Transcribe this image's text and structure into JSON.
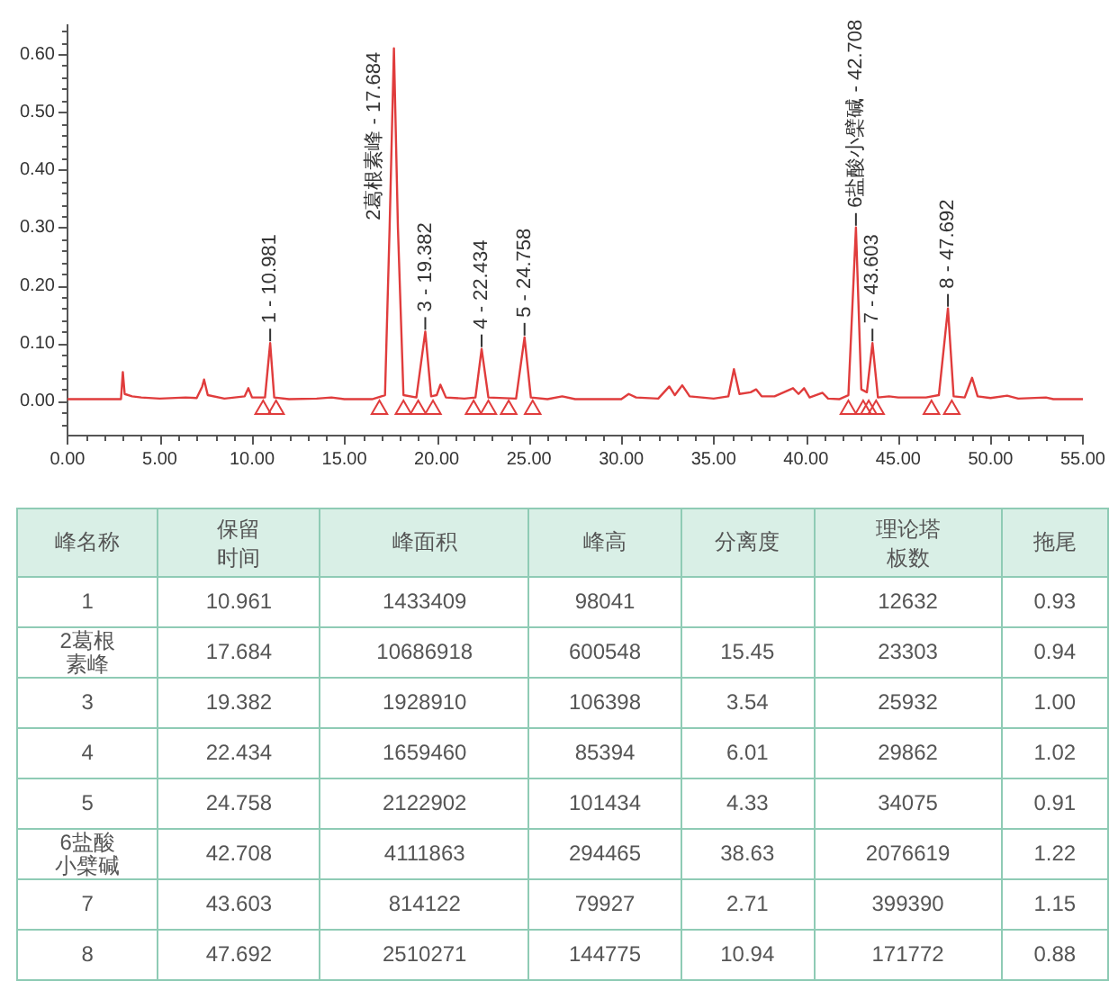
{
  "chart_data": [
    {
      "type": "line",
      "xlim": [
        0,
        55
      ],
      "ylim": [
        -0.06,
        0.65
      ],
      "xticks": [
        {
          "value": 0,
          "label": "0.00"
        },
        {
          "value": 1,
          "label": null
        },
        {
          "value": 2,
          "label": null
        },
        {
          "value": 3,
          "label": null
        },
        {
          "value": 4,
          "label": null
        },
        {
          "value": 5,
          "label": "5.00"
        },
        {
          "value": 6,
          "label": null
        },
        {
          "value": 7,
          "label": null
        },
        {
          "value": 8,
          "label": null
        },
        {
          "value": 9,
          "label": null
        },
        {
          "value": 10,
          "label": "10.00"
        },
        {
          "value": 11,
          "label": null
        },
        {
          "value": 12,
          "label": null
        },
        {
          "value": 13,
          "label": null
        },
        {
          "value": 14,
          "label": null
        },
        {
          "value": 15,
          "label": "15.00"
        },
        {
          "value": 16,
          "label": null
        },
        {
          "value": 17,
          "label": null
        },
        {
          "value": 18,
          "label": null
        },
        {
          "value": 19,
          "label": null
        },
        {
          "value": 20,
          "label": "20.00"
        },
        {
          "value": 21,
          "label": null
        },
        {
          "value": 22,
          "label": null
        },
        {
          "value": 23,
          "label": null
        },
        {
          "value": 24,
          "label": null
        },
        {
          "value": 25,
          "label": "25.00"
        },
        {
          "value": 26,
          "label": null
        },
        {
          "value": 27,
          "label": null
        },
        {
          "value": 28,
          "label": null
        },
        {
          "value": 29,
          "label": null
        },
        {
          "value": 30,
          "label": "30.00"
        },
        {
          "value": 31,
          "label": null
        },
        {
          "value": 32,
          "label": null
        },
        {
          "value": 33,
          "label": null
        },
        {
          "value": 34,
          "label": null
        },
        {
          "value": 35,
          "label": "35.00"
        },
        {
          "value": 36,
          "label": null
        },
        {
          "value": 37,
          "label": null
        },
        {
          "value": 38,
          "label": null
        },
        {
          "value": 39,
          "label": null
        },
        {
          "value": 40,
          "label": "40.00"
        },
        {
          "value": 41,
          "label": null
        },
        {
          "value": 42,
          "label": null
        },
        {
          "value": 43,
          "label": null
        },
        {
          "value": 44,
          "label": null
        },
        {
          "value": 45,
          "label": "45.00"
        },
        {
          "value": 46,
          "label": null
        },
        {
          "value": 47,
          "label": null
        },
        {
          "value": 48,
          "label": null
        },
        {
          "value": 49,
          "label": null
        },
        {
          "value": 50,
          "label": "50.00"
        },
        {
          "value": 51,
          "label": null
        },
        {
          "value": 52,
          "label": null
        },
        {
          "value": 53,
          "label": null
        },
        {
          "value": 54,
          "label": null
        },
        {
          "value": 55,
          "label": "55.00"
        }
      ],
      "yticks": [
        {
          "value": -0.04,
          "label": null
        },
        {
          "value": -0.02,
          "label": null
        },
        {
          "value": 0,
          "label": "0.00"
        },
        {
          "value": 0.02,
          "label": null
        },
        {
          "value": 0.04,
          "label": null
        },
        {
          "value": 0.06,
          "label": null
        },
        {
          "value": 0.08,
          "label": null
        },
        {
          "value": 0.1,
          "label": "0.10"
        },
        {
          "value": 0.12,
          "label": null
        },
        {
          "value": 0.14,
          "label": null
        },
        {
          "value": 0.16,
          "label": null
        },
        {
          "value": 0.18,
          "label": null
        },
        {
          "value": 0.2,
          "label": "0.20"
        },
        {
          "value": 0.22,
          "label": null
        },
        {
          "value": 0.24,
          "label": null
        },
        {
          "value": 0.26,
          "label": null
        },
        {
          "value": 0.28,
          "label": null
        },
        {
          "value": 0.3,
          "label": "0.30"
        },
        {
          "value": 0.32,
          "label": null
        },
        {
          "value": 0.34,
          "label": null
        },
        {
          "value": 0.36,
          "label": null
        },
        {
          "value": 0.38,
          "label": null
        },
        {
          "value": 0.4,
          "label": "0.40"
        },
        {
          "value": 0.42,
          "label": null
        },
        {
          "value": 0.44,
          "label": null
        },
        {
          "value": 0.46,
          "label": null
        },
        {
          "value": 0.48,
          "label": null
        },
        {
          "value": 0.5,
          "label": "0.50"
        },
        {
          "value": 0.52,
          "label": null
        },
        {
          "value": 0.54,
          "label": null
        },
        {
          "value": 0.56,
          "label": null
        },
        {
          "value": 0.58,
          "label": null
        },
        {
          "value": 0.6,
          "label": "0.60"
        },
        {
          "value": 0.62,
          "label": null
        },
        {
          "value": 0.64,
          "label": null
        }
      ],
      "series": [
        {
          "type": "line",
          "color": "#e03c3c",
          "marker": "none",
          "x": [
            0,
            2.9,
            3.0,
            3.1,
            3.5,
            4,
            5,
            6.4,
            7.0,
            7.3,
            7.4,
            7.6,
            8.5,
            9.6,
            9.8,
            10.0,
            10.7,
            10.981,
            11.2,
            12,
            13.5,
            14.3,
            15,
            16.5,
            17.2,
            17.45,
            17.684,
            17.9,
            18.2,
            18.9,
            19.382,
            19.7,
            20.0,
            20.2,
            20.5,
            21.5,
            22.1,
            22.434,
            22.8,
            24.3,
            24.758,
            25.1,
            26,
            26.8,
            27.5,
            30,
            30.4,
            30.8,
            32,
            32.6,
            32.9,
            33.3,
            33.7,
            35,
            35.8,
            36.1,
            36.4,
            37.0,
            37.3,
            37.6,
            38.3,
            39.3,
            39.6,
            39.9,
            40.2,
            40.9,
            41.2,
            41.8,
            42.3,
            42.708,
            43.0,
            43.3,
            43.603,
            43.9,
            44.5,
            45,
            46.5,
            47.2,
            47.692,
            48.0,
            48.6,
            49.0,
            49.3,
            50,
            50.9,
            51.5,
            53,
            53.4,
            55
          ],
          "values": [
            0.003,
            0.003,
            0.05,
            0.012,
            0.008,
            0.006,
            0.004,
            0.006,
            0.005,
            0.025,
            0.037,
            0.01,
            0.004,
            0.008,
            0.022,
            0.006,
            0.006,
            0.1,
            0.006,
            0.003,
            0.004,
            0.006,
            0.003,
            0.003,
            0.01,
            0.3,
            0.61,
            0.3,
            0.01,
            0.006,
            0.12,
            0.008,
            0.01,
            0.028,
            0.006,
            0.004,
            0.006,
            0.09,
            0.006,
            0.004,
            0.11,
            0.006,
            0.003,
            0.008,
            0.003,
            0.003,
            0.012,
            0.006,
            0.004,
            0.025,
            0.01,
            0.027,
            0.008,
            0.004,
            0.008,
            0.055,
            0.012,
            0.015,
            0.02,
            0.008,
            0.008,
            0.022,
            0.012,
            0.022,
            0.006,
            0.014,
            0.004,
            0.003,
            0.01,
            0.3,
            0.02,
            0.015,
            0.1,
            0.006,
            0.008,
            0.006,
            0.006,
            0.01,
            0.16,
            0.008,
            0.006,
            0.04,
            0.008,
            0.005,
            0.009,
            0.004,
            0.006,
            0.003,
            0.003
          ]
        },
        {
          "type": "scatter",
          "color": "#e03c3c",
          "marker": "triangle",
          "x": [
            10.6,
            11.3,
            16.9,
            18.2,
            19.0,
            19.8,
            22.0,
            22.8,
            23.9,
            25.2,
            42.3,
            43.1,
            43.4,
            43.8,
            46.8,
            47.9
          ],
          "values": [
            -0.015,
            -0.015,
            -0.015,
            -0.015,
            -0.015,
            -0.015,
            -0.015,
            -0.015,
            -0.015,
            -0.015,
            -0.015,
            -0.015,
            -0.015,
            -0.015,
            -0.015,
            -0.015
          ]
        }
      ],
      "annotations": [
        {
          "text": "1 - 10.981",
          "x": 10.981,
          "y": 0.1
        },
        {
          "text": "2葛根素峰 - 17.684",
          "x": 17.684,
          "y": 0.61
        },
        {
          "text": "3 - 19.382",
          "x": 19.382,
          "y": 0.12
        },
        {
          "text": "4 - 22.434",
          "x": 22.434,
          "y": 0.09
        },
        {
          "text": "5 - 24.758",
          "x": 24.758,
          "y": 0.11
        },
        {
          "text": "6盐酸小檗碱 - 42.708",
          "x": 42.708,
          "y": 0.3
        },
        {
          "text": "7 - 43.603",
          "x": 43.603,
          "y": 0.1
        },
        {
          "text": "8 - 47.692",
          "x": 47.692,
          "y": 0.16
        }
      ]
    },
    {
      "type": "heatmap",
      "ylabel": "峰名称",
      "categories": [
        "保留时间",
        "峰面积",
        "峰高",
        "分离度",
        "理论塔板数",
        "拖尾"
      ],
      "y_categories": [
        "1",
        "2葛根素峰",
        "3",
        "4",
        "5",
        "6盐酸小檗碱",
        "7",
        "8"
      ],
      "cells": [
        [
          10.961,
          1433409,
          98041,
          null,
          12632,
          0.93
        ],
        [
          17.684,
          10686918,
          600548,
          15.45,
          23303,
          0.94
        ],
        [
          19.382,
          1928910,
          106398,
          3.54,
          25932,
          1
        ],
        [
          22.434,
          1659460,
          85394,
          6.01,
          29862,
          1.02
        ],
        [
          24.758,
          2122902,
          101434,
          4.33,
          34075,
          0.91
        ],
        [
          42.708,
          4111863,
          294465,
          38.63,
          2076619,
          1.22
        ],
        [
          43.603,
          814122,
          79927,
          2.71,
          399390,
          1.15
        ],
        [
          47.692,
          2510271,
          144775,
          10.94,
          171772,
          0.88
        ]
      ],
      "cell_labels": [
        [
          "10.961",
          "1433409",
          "98041",
          null,
          "12632",
          "0.93"
        ],
        [
          "17.684",
          "10686918",
          "600548",
          "15.45",
          "23303",
          "0.94"
        ],
        [
          "19.382",
          "1928910",
          "106398",
          "3.54",
          "25932",
          "1.00"
        ],
        [
          "22.434",
          "1659460",
          "85394",
          "6.01",
          "29862",
          "1.02"
        ],
        [
          "24.758",
          "2122902",
          "101434",
          "4.33",
          "34075",
          "0.91"
        ],
        [
          "42.708",
          "4111863",
          "294465",
          "38.63",
          "2076619",
          "1.22"
        ],
        [
          "43.603",
          "814122",
          "79927",
          "2.71",
          "399390",
          "1.15"
        ],
        [
          "47.692",
          "2510271",
          "144775",
          "10.94",
          "171772",
          "0.88"
        ]
      ]
    }
  ]
}
